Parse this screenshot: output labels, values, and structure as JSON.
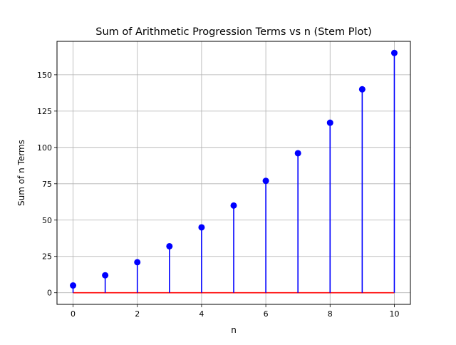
{
  "chart_data": {
    "type": "stem",
    "title": "Sum of Arithmetic Progression Terms vs n (Stem Plot)",
    "xlabel": "n",
    "ylabel": "Sum of n Terms",
    "x": [
      0,
      1,
      2,
      3,
      4,
      5,
      6,
      7,
      8,
      9,
      10
    ],
    "values": [
      5,
      12,
      21,
      32,
      45,
      60,
      77,
      96,
      117,
      140,
      165
    ],
    "xlim": [
      -0.5,
      10.5
    ],
    "ylim": [
      -8.0,
      173.0
    ],
    "xticks": [
      0,
      2,
      4,
      6,
      8,
      10
    ],
    "yticks": [
      0,
      25,
      50,
      75,
      100,
      125,
      150
    ],
    "grid": true,
    "legend": "none",
    "colors": {
      "stem": "#0000ff",
      "marker": "#0000ff",
      "baseline": "#ff0000",
      "grid": "#b0b0b0",
      "axes": "#000000"
    }
  }
}
